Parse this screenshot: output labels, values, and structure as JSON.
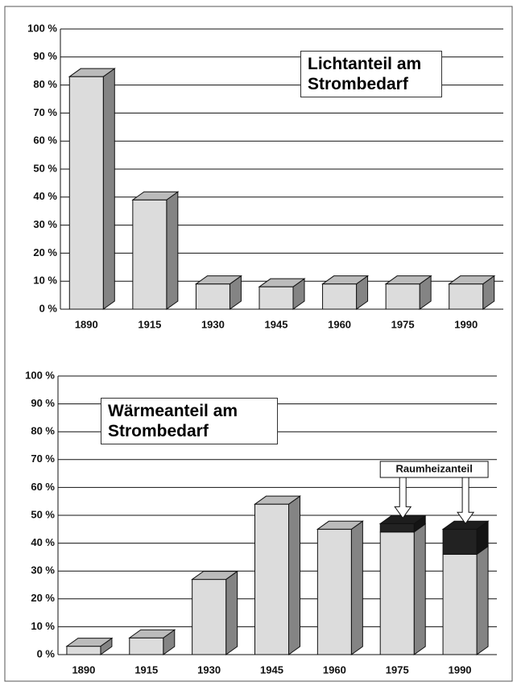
{
  "chart_data": [
    {
      "type": "bar",
      "title": "Lichtanteil am Strombedarf",
      "categories": [
        "1890",
        "1915",
        "1930",
        "1945",
        "1960",
        "1975",
        "1990"
      ],
      "series": [
        {
          "color": "#dcdcdc",
          "values": [
            83,
            39,
            9,
            8,
            9,
            9,
            9
          ]
        }
      ],
      "ylim": [
        0,
        100
      ],
      "yticks": [
        {
          "value": 0,
          "label": "0 %"
        },
        {
          "value": 10,
          "label": "10 %"
        },
        {
          "value": 20,
          "label": "20 %"
        },
        {
          "value": 30,
          "label": "30 %"
        },
        {
          "value": 40,
          "label": "40 %"
        },
        {
          "value": 50,
          "label": "50 %"
        },
        {
          "value": 60,
          "label": "60 %"
        },
        {
          "value": 70,
          "label": "70 %"
        },
        {
          "value": 80,
          "label": "80 %"
        },
        {
          "value": 90,
          "label": "90 %"
        },
        {
          "value": 100,
          "label": "100 %"
        }
      ],
      "grid": true
    },
    {
      "type": "stacked_bar",
      "title": "Wärmeanteil am Strombedarf",
      "categories": [
        "1890",
        "1915",
        "1930",
        "1945",
        "1960",
        "1975",
        "1990"
      ],
      "series": [
        {
          "color": "#dcdcdc",
          "values": [
            3,
            6,
            27,
            54,
            45,
            44,
            36
          ]
        },
        {
          "name": "Raumheizanteil",
          "color": "#222222",
          "values": [
            null,
            null,
            null,
            null,
            null,
            3,
            9
          ]
        }
      ],
      "ylim": [
        0,
        100
      ],
      "yticks": [
        {
          "value": 0,
          "label": "0 %"
        },
        {
          "value": 10,
          "label": "10 %"
        },
        {
          "value": 20,
          "label": "20 %"
        },
        {
          "value": 30,
          "label": "30 %"
        },
        {
          "value": 40,
          "label": "40 %"
        },
        {
          "value": 50,
          "label": "50 %"
        },
        {
          "value": 60,
          "label": "60 %"
        },
        {
          "value": 70,
          "label": "70 %"
        },
        {
          "value": 80,
          "label": "80 %"
        },
        {
          "value": 90,
          "label": "90 %"
        },
        {
          "value": 100,
          "label": "100 %"
        }
      ],
      "grid": true
    }
  ]
}
